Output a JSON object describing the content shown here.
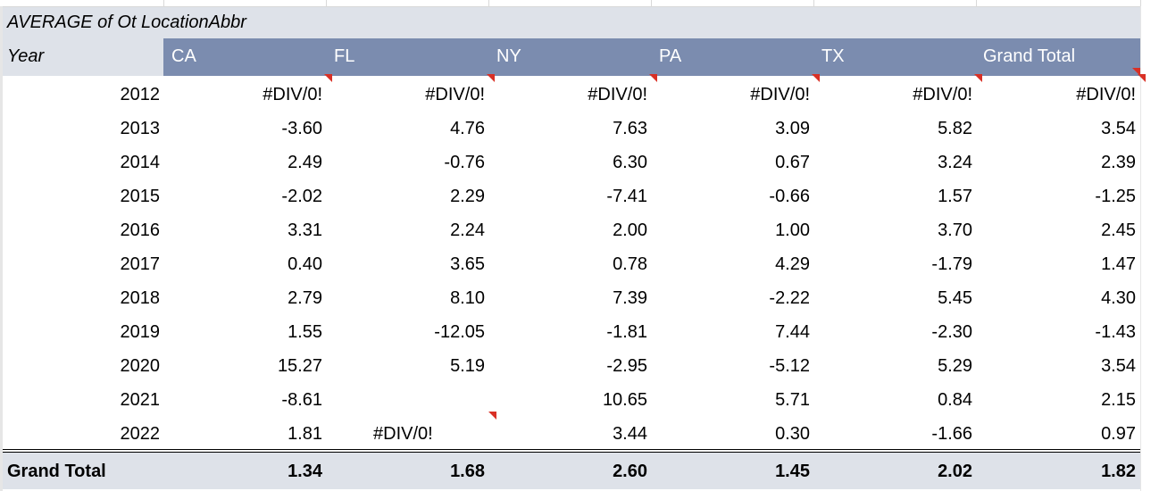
{
  "pivot": {
    "filter_label": "AVERAGE of Ot LocationAbbr",
    "row_header": "Year",
    "columns": [
      "CA",
      "FL",
      "NY",
      "PA",
      "TX",
      "Grand Total"
    ],
    "rows": [
      {
        "year": "2012",
        "values": [
          "#DIV/0!",
          "#DIV/0!",
          "#DIV/0!",
          "#DIV/0!",
          "#DIV/0!",
          "#DIV/0!"
        ]
      },
      {
        "year": "2013",
        "values": [
          "-3.60",
          "4.76",
          "7.63",
          "3.09",
          "5.82",
          "3.54"
        ]
      },
      {
        "year": "2014",
        "values": [
          "2.49",
          "-0.76",
          "6.30",
          "0.67",
          "3.24",
          "2.39"
        ]
      },
      {
        "year": "2015",
        "values": [
          "-2.02",
          "2.29",
          "-7.41",
          "-0.66",
          "1.57",
          "-1.25"
        ]
      },
      {
        "year": "2016",
        "values": [
          "3.31",
          "2.24",
          "2.00",
          "1.00",
          "3.70",
          "2.45"
        ]
      },
      {
        "year": "2017",
        "values": [
          "0.40",
          "3.65",
          "0.78",
          "4.29",
          "-1.79",
          "1.47"
        ]
      },
      {
        "year": "2018",
        "values": [
          "2.79",
          "8.10",
          "7.39",
          "-2.22",
          "5.45",
          "4.30"
        ]
      },
      {
        "year": "2019",
        "values": [
          "1.55",
          "-12.05",
          "-1.81",
          "7.44",
          "-2.30",
          "-1.43"
        ]
      },
      {
        "year": "2020",
        "values": [
          "15.27",
          "5.19",
          "-2.95",
          "-5.12",
          "5.29",
          "3.54"
        ]
      },
      {
        "year": "2021",
        "values": [
          "-8.61",
          "",
          "10.65",
          "5.71",
          "0.84",
          "2.15"
        ]
      },
      {
        "year": "2022",
        "values": [
          "1.81",
          "#DIV/0!",
          "3.44",
          "0.30",
          "-1.66",
          "0.97"
        ]
      }
    ],
    "total_label": "Grand Total",
    "totals": [
      "1.34",
      "1.68",
      "2.60",
      "1.45",
      "2.02",
      "1.82"
    ]
  },
  "colors": {
    "header_fill": "#7b8caf",
    "label_fill": "#dee2e9",
    "error_note": "#d93025"
  }
}
